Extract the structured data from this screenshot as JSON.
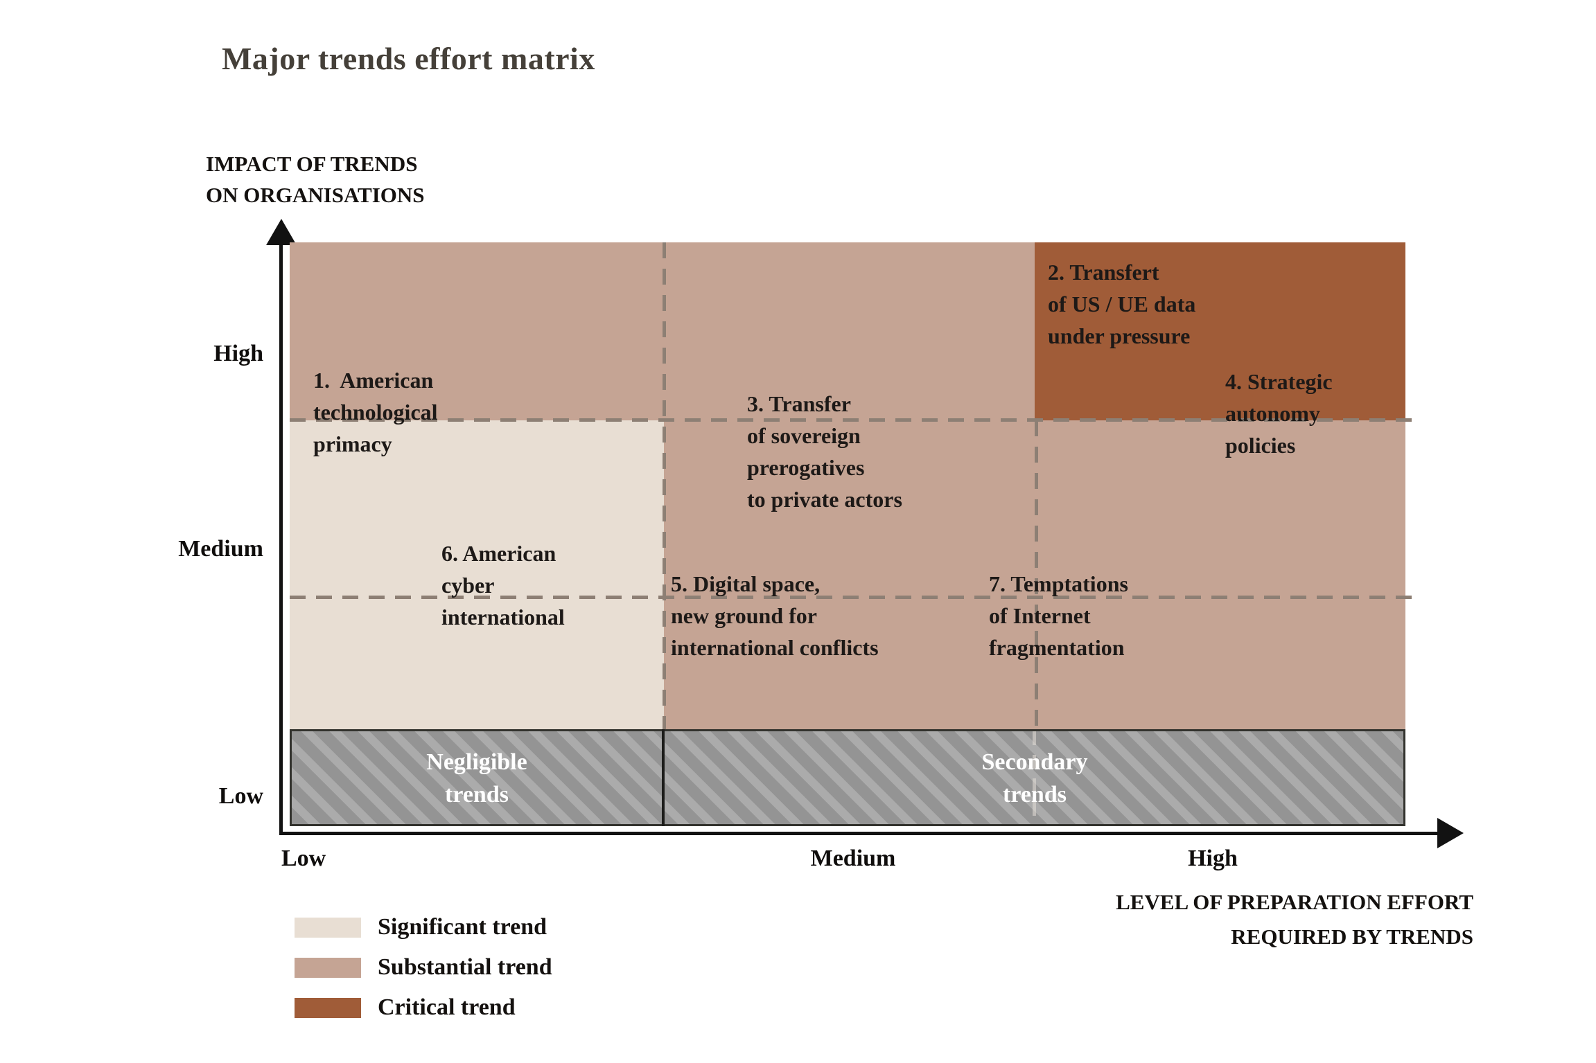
{
  "chart_data": {
    "type": "heatmap",
    "title": "Major trends effort matrix",
    "y_axis": {
      "label_lines": [
        "IMPACT OF TRENDS",
        "ON ORGANISATIONS"
      ],
      "ticks": [
        "High",
        "Medium",
        "Low"
      ]
    },
    "x_axis": {
      "label_lines": [
        "LEVEL OF PREPARATION EFFORT",
        "REQUIRED BY TRENDS"
      ],
      "ticks": [
        "Low",
        "Medium",
        "High"
      ]
    },
    "legend": [
      {
        "label": "Significant trend",
        "color": "#e8ded3"
      },
      {
        "label": "Substantial trend",
        "color": "#c5a494"
      },
      {
        "label": "Critical trend",
        "color": "#a05c38"
      }
    ],
    "zones": [
      {
        "name": "Significant trend",
        "color": "#e8ded3",
        "impact": "Medium",
        "effort": "Low"
      },
      {
        "name": "Substantial trend",
        "color": "#c5a494",
        "impact": "High to Medium",
        "effort": "Low to High"
      },
      {
        "name": "Critical trend",
        "color": "#a05c38",
        "impact": "High",
        "effort": "High"
      }
    ],
    "bands": [
      {
        "lines": [
          "Negligible",
          "trends"
        ],
        "impact": "Low",
        "effort": "Low"
      },
      {
        "lines": [
          "Secondary",
          "trends"
        ],
        "impact": "Low",
        "effort": "Medium to High"
      }
    ],
    "items": [
      {
        "id": 1,
        "lines": [
          "1.  American",
          "technological",
          "primacy"
        ],
        "impact": "High/Medium",
        "effort": "Low",
        "zone": "Substantial/Significant trend"
      },
      {
        "id": 2,
        "lines": [
          "2. Transfert",
          "of US / UE data",
          "under pressure"
        ],
        "impact": "High",
        "effort": "High",
        "zone": "Critical trend"
      },
      {
        "id": 3,
        "lines": [
          "3. Transfer",
          "of sovereign",
          "prerogatives",
          "to private actors"
        ],
        "impact": "High/Medium",
        "effort": "Medium",
        "zone": "Substantial trend"
      },
      {
        "id": 4,
        "lines": [
          "4. Strategic",
          "autonomy",
          "policies"
        ],
        "impact": "High/Medium",
        "effort": "High",
        "zone": "Critical/Substantial trend"
      },
      {
        "id": 5,
        "lines": [
          "5. Digital space,",
          "new ground for",
          "international conflicts"
        ],
        "impact": "Medium",
        "effort": "Medium",
        "zone": "Substantial trend"
      },
      {
        "id": 6,
        "lines": [
          "6. American",
          "cyber",
          "international"
        ],
        "impact": "Medium",
        "effort": "Low",
        "zone": "Significant trend"
      },
      {
        "id": 7,
        "lines": [
          "7. Temptations",
          "of Internet",
          "fragmentation"
        ],
        "impact": "Medium",
        "effort": "Medium/High",
        "zone": "Substantial trend"
      }
    ],
    "grid": "dashed",
    "legend_position": "bottom-left"
  }
}
